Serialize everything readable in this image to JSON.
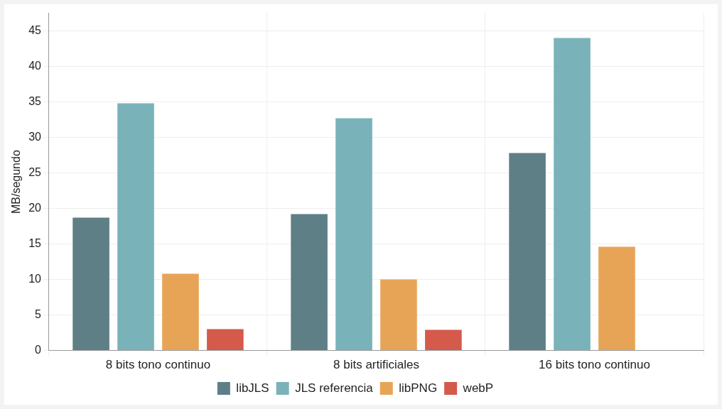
{
  "chart_data": {
    "type": "bar",
    "ylabel": "MB/segundo",
    "categories": [
      "8 bits tono continuo",
      "8 bits artificiales",
      "16 bits tono continuo"
    ],
    "series": [
      {
        "name": "libJLS",
        "color": "#5f7f87",
        "values": [
          18.7,
          19.2,
          27.8
        ]
      },
      {
        "name": "JLS referencia",
        "color": "#79b3b9",
        "values": [
          34.8,
          32.7,
          44.0
        ]
      },
      {
        "name": "libPNG",
        "color": "#e8a456",
        "values": [
          10.8,
          10.0,
          14.6
        ]
      },
      {
        "name": "webP",
        "color": "#d45a4c",
        "values": [
          3.0,
          2.9,
          null
        ]
      }
    ],
    "ylim": [
      0,
      47.5
    ],
    "yticks": [
      0,
      5,
      10,
      15,
      20,
      25,
      30,
      35,
      40,
      45
    ],
    "grid": true,
    "legend": "bottom"
  }
}
